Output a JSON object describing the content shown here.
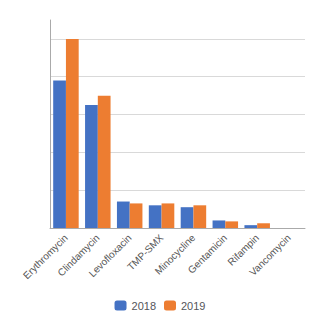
{
  "chart_data": {
    "type": "bar",
    "categories": [
      "Erythromycin",
      "Clindamycin",
      "Levofloxacin",
      "TMP-SMX",
      "Minocycline",
      "Gentamicin",
      "Rifampin",
      "Vancomycin"
    ],
    "series": [
      {
        "name": "2018",
        "color": "#4472C4",
        "values": [
          78,
          65,
          14,
          12,
          11,
          4,
          1.5,
          0
        ]
      },
      {
        "name": "2019",
        "color": "#ED7D31",
        "values": [
          100,
          70,
          13,
          13,
          12,
          3.5,
          2.5,
          0
        ]
      }
    ],
    "ylim": [
      0,
      110
    ],
    "yticks": [
      20,
      40,
      60,
      80,
      100
    ],
    "grid": true,
    "legend": "bottom",
    "tick_labels": "x"
  }
}
